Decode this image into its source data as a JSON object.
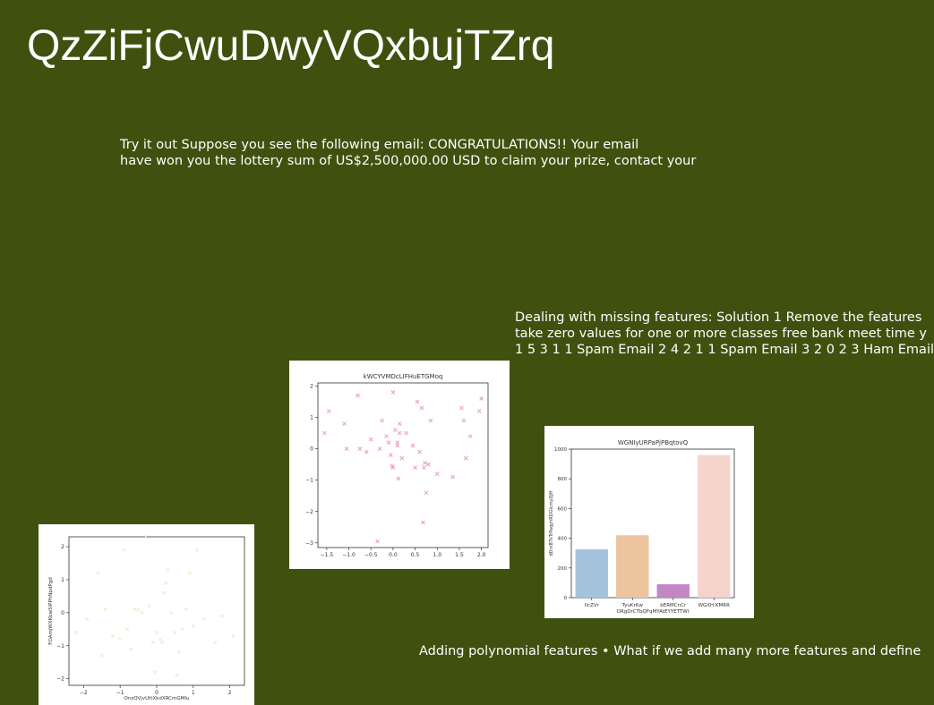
{
  "slide": {
    "title": "QzZiFjCwuDwyVQxbujTZrq",
    "para1": [
      "Try it out Suppose you see the following email: CONGRATULATIONS!! Your email",
      "have won you the lottery sum of US$2,500,000.00 USD to claim your prize, contact your"
    ],
    "para2": [
      "Dealing with missing features: Solution 1 Remove the features",
      "take zero values for one or more classes free bank meet time y",
      "1 5 3 1 1 Spam Email 2 4 2 1 1 Spam Email 3 2 0 2 3 Ham Email"
    ],
    "para3": [
      "Adding polynomial features • What if we add many more features and define"
    ]
  },
  "chart_data": [
    {
      "type": "scatter",
      "title": "",
      "xlabel": "OnzQVjvUttXkdXRCmGMIu",
      "ylabel": "FOAmjWXKbwSiPPhNpdPgd",
      "xlim": [
        -2.4,
        2.4
      ],
      "ylim": [
        -2.2,
        2.3
      ],
      "xticks": [
        -2,
        -1,
        0,
        1,
        2
      ],
      "yticks": [
        -2,
        -1,
        0,
        1,
        2
      ],
      "color": "#f5e9c8",
      "x": [
        -2.2,
        -1.9,
        -1.6,
        -1.4,
        -1.2,
        -1.0,
        -0.9,
        -0.8,
        -0.7,
        -0.5,
        -0.4,
        -0.3,
        -0.2,
        -0.1,
        0.0,
        0.1,
        0.2,
        0.3,
        0.4,
        0.5,
        0.6,
        0.7,
        0.8,
        0.9,
        1.0,
        1.1,
        1.3,
        1.6,
        1.8,
        2.1,
        -1.5,
        0.25,
        0.15,
        -0.6,
        0.55,
        -0.05
      ],
      "y": [
        -0.6,
        -0.2,
        1.2,
        0.1,
        -0.7,
        -0.8,
        1.9,
        -0.5,
        -1.1,
        0.1,
        0.0,
        2.3,
        0.2,
        -0.9,
        -0.6,
        -0.8,
        0.6,
        1.3,
        0.0,
        -0.6,
        -1.2,
        -0.5,
        0.1,
        1.2,
        -0.4,
        1.9,
        -0.2,
        -0.9,
        -0.1,
        -0.7,
        -1.3,
        0.9,
        -0.9,
        0.1,
        -1.9,
        -1.8
      ]
    },
    {
      "type": "scatter",
      "title": "kWCYVMDcLIFHuETGMoq",
      "xlabel": "",
      "ylabel": "",
      "xlim": [
        -1.7,
        2.15
      ],
      "ylim": [
        -3.15,
        2.1
      ],
      "xticks": [
        -1.5,
        -1.0,
        -0.5,
        0.0,
        0.5,
        1.0,
        1.5,
        2.0
      ],
      "xtick_labels": [
        "−1.5",
        "−1.0",
        "−0.5",
        "0.0",
        "0.5",
        "1.0",
        "1.5",
        "2.0"
      ],
      "yticks": [
        -3,
        -2,
        -1,
        0,
        1,
        2
      ],
      "ytick_labels": [
        "−3",
        "−2",
        "−1",
        "0",
        "1",
        "2"
      ],
      "color": "#e8a0ae",
      "x": [
        -1.55,
        -1.45,
        -1.1,
        -1.05,
        -0.8,
        -0.75,
        -0.6,
        -0.5,
        -0.3,
        -0.25,
        -0.15,
        -0.1,
        -0.05,
        0.0,
        0.0,
        0.05,
        0.1,
        0.1,
        0.15,
        0.15,
        0.2,
        0.3,
        0.45,
        0.5,
        0.55,
        0.6,
        0.65,
        0.7,
        0.75,
        0.8,
        0.85,
        1.0,
        1.35,
        1.55,
        1.6,
        1.65,
        1.75,
        1.95,
        2.0,
        0.12,
        -0.02,
        0.68,
        0.72,
        -0.35
      ],
      "y": [
        0.5,
        1.2,
        0.8,
        0.0,
        1.7,
        0.0,
        -0.1,
        0.3,
        0.0,
        0.9,
        0.4,
        0.2,
        -0.2,
        1.8,
        -0.6,
        0.6,
        0.1,
        0.2,
        0.8,
        0.5,
        -0.3,
        0.5,
        0.1,
        -0.6,
        1.5,
        -0.1,
        1.3,
        -0.6,
        -1.4,
        -0.5,
        0.9,
        -0.8,
        -0.9,
        1.3,
        0.9,
        -0.3,
        0.4,
        1.2,
        1.6,
        -0.95,
        -0.55,
        -2.35,
        -0.45,
        -2.95
      ]
    },
    {
      "type": "bar",
      "title": "WGNIyURPaPjPBqtovQ",
      "xlabel": "ORgDrCTbQFqMYAtEYYETTWI",
      "ylabel": "dDrxBTkTrPaqyhRDGlcmyDJH",
      "ylim": [
        0,
        1000
      ],
      "yticks": [
        0,
        200,
        400,
        600,
        800,
        1000
      ],
      "categories": [
        "IlcZVr",
        "TyuKrKw",
        "bERMCnCr",
        "WGXH KMRR"
      ],
      "values": [
        325,
        420,
        90,
        960
      ],
      "colors": [
        "#a5c2dd",
        "#ecc49e",
        "#c387c6",
        "#f5d5cb"
      ]
    }
  ]
}
